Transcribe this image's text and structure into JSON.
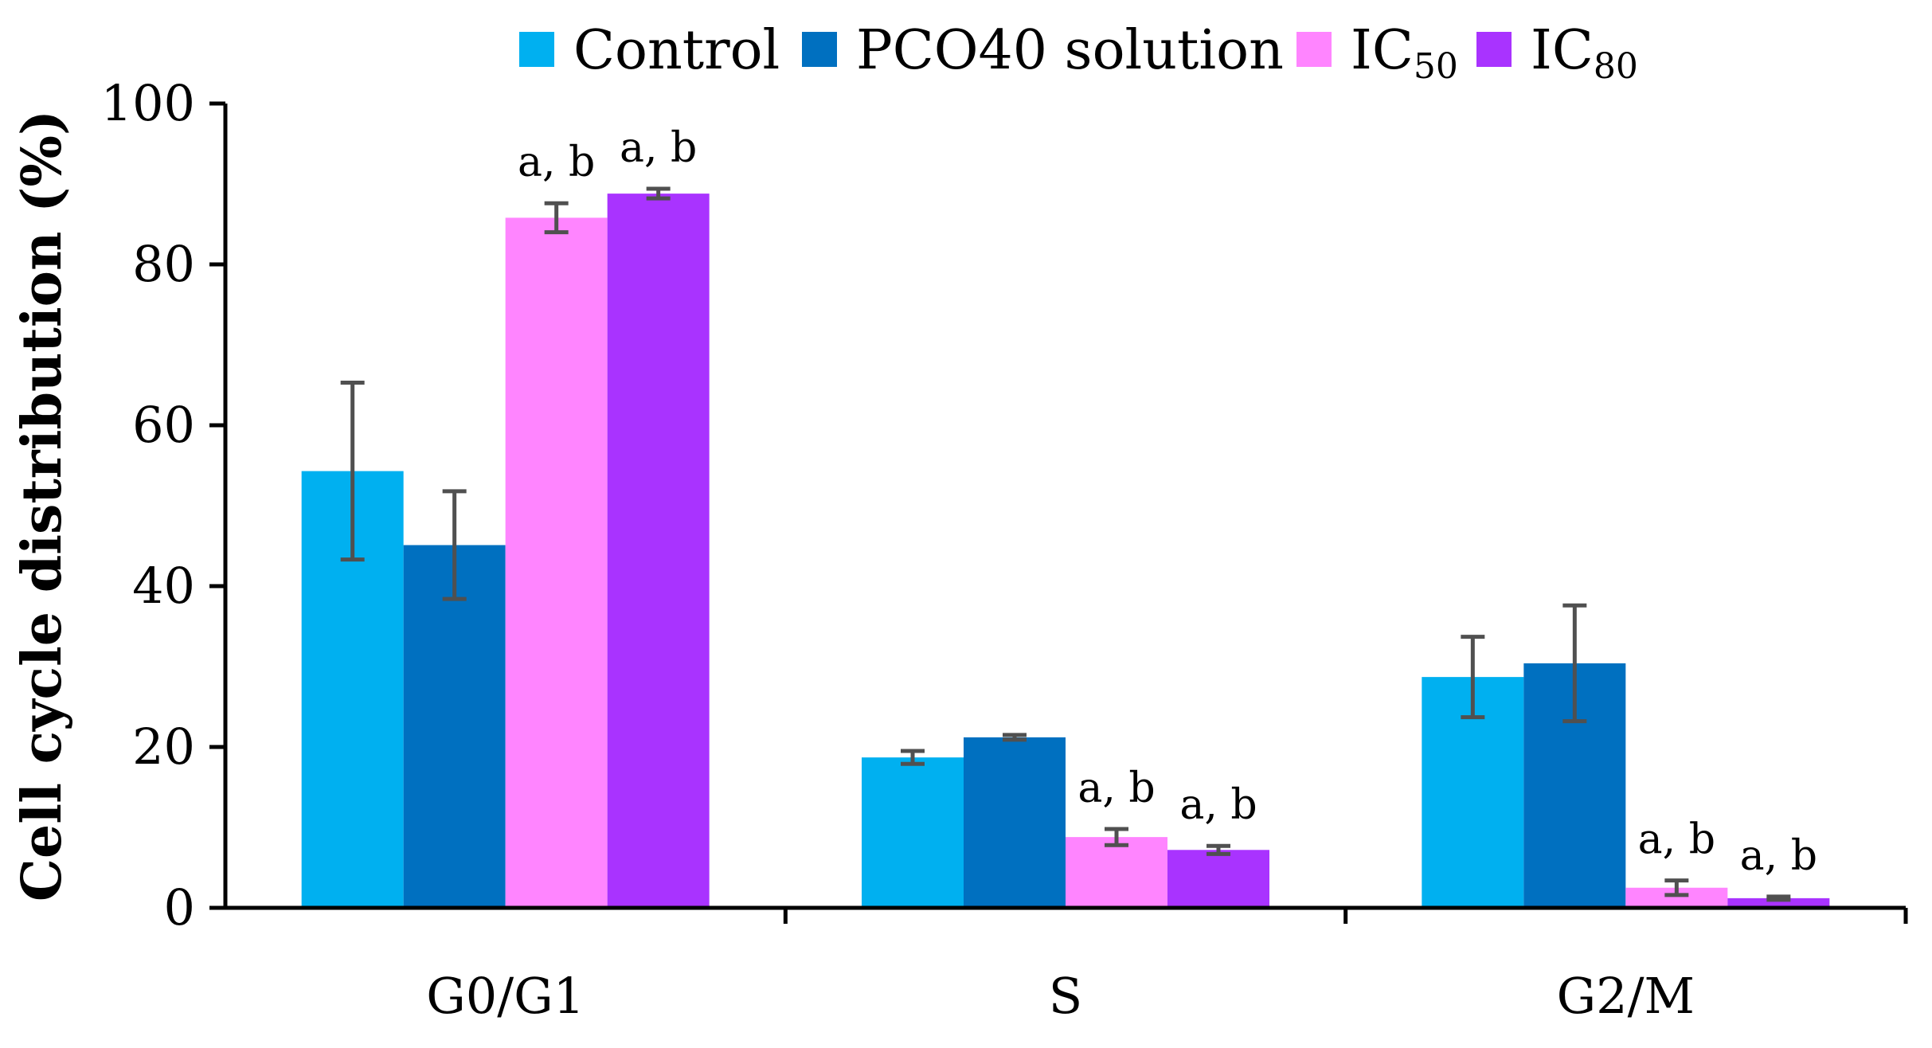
{
  "chart_data": {
    "type": "bar",
    "title": "",
    "xlabel": "",
    "ylabel": "Cell cycle distribution (%)",
    "ylim": [
      0,
      100
    ],
    "yticks": [
      0,
      20,
      40,
      60,
      80,
      100
    ],
    "categories": [
      "G0/G1",
      "S",
      "G2/M"
    ],
    "legend_position": "top",
    "series": [
      {
        "name": "Control",
        "legend_main": "Control",
        "legend_sub": "",
        "color": "#00B0F0",
        "values": [
          54.3,
          18.7,
          28.7
        ],
        "errors": [
          11.0,
          0.8,
          5.0
        ],
        "annotations": [
          "",
          "",
          ""
        ]
      },
      {
        "name": "PCO40 solution",
        "legend_main": "PCO40 solution",
        "legend_sub": "",
        "color": "#0070C0",
        "values": [
          45.1,
          21.2,
          30.4
        ],
        "errors": [
          6.7,
          0.3,
          7.2
        ],
        "annotations": [
          "",
          "",
          ""
        ]
      },
      {
        "name": "IC50",
        "legend_main": "IC",
        "legend_sub": "50",
        "color": "#FF85FF",
        "values": [
          85.8,
          8.8,
          2.5
        ],
        "errors": [
          1.8,
          1.0,
          0.9
        ],
        "annotations": [
          "a, b",
          "a, b",
          "a, b"
        ]
      },
      {
        "name": "IC80",
        "legend_main": "IC",
        "legend_sub": "80",
        "color": "#A933FF",
        "values": [
          88.8,
          7.2,
          1.2
        ],
        "errors": [
          0.6,
          0.5,
          0.2
        ],
        "annotations": [
          "a, b",
          "a, b",
          "a, b"
        ]
      }
    ],
    "error_bar_color": "#505050",
    "axis_color": "#000000"
  }
}
